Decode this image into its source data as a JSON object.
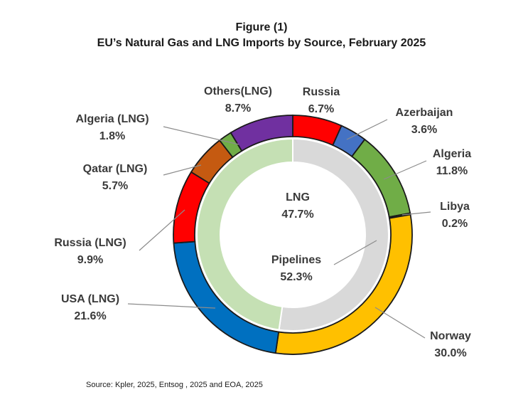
{
  "header": {
    "figure_label": "Figure (1)",
    "title": "EU’s Natural Gas and LNG Imports by Source, February 2025"
  },
  "source": "Source: Kpler, 2025, Entsog , 2025 and  EOA, 2025",
  "chart_data": {
    "type": "donut",
    "title": "EU’s Natural Gas and LNG Imports by Source, February 2025",
    "inner_ring": [
      {
        "label": "LNG",
        "value": 47.7,
        "value_label": "47.7%",
        "color": "#c5e0b4"
      },
      {
        "label": "Pipelines",
        "value": 52.3,
        "value_label": "52.3%",
        "color": "#d9d9d9"
      }
    ],
    "outer_ring": [
      {
        "label": "Russia",
        "value": 6.7,
        "value_label": "6.7%",
        "color": "#ff0000"
      },
      {
        "label": "Azerbaijan",
        "value": 3.6,
        "value_label": "3.6%",
        "color": "#4472c4"
      },
      {
        "label": "Algeria",
        "value": 11.8,
        "value_label": "11.8%",
        "color": "#70ad47"
      },
      {
        "label": "Libya",
        "value": 0.2,
        "value_label": "0.2%",
        "color": "#70ad47"
      },
      {
        "label": "Norway",
        "value": 30.0,
        "value_label": "30.0%",
        "color": "#ffc000"
      },
      {
        "label": "USA (LNG)",
        "value": 21.6,
        "value_label": "21.6%",
        "color": "#0070c0"
      },
      {
        "label": "Russia (LNG)",
        "value": 9.9,
        "value_label": "9.9%",
        "color": "#ff0000"
      },
      {
        "label": "Qatar (LNG)",
        "value": 5.7,
        "value_label": "5.7%",
        "color": "#c55a11"
      },
      {
        "label": "Algeria  (LNG)",
        "value": 1.8,
        "value_label": "1.8%",
        "color": "#70ad47"
      },
      {
        "label": "Others(LNG)",
        "value": 8.7,
        "value_label": "8.7%",
        "color": "#7030a0"
      }
    ]
  }
}
